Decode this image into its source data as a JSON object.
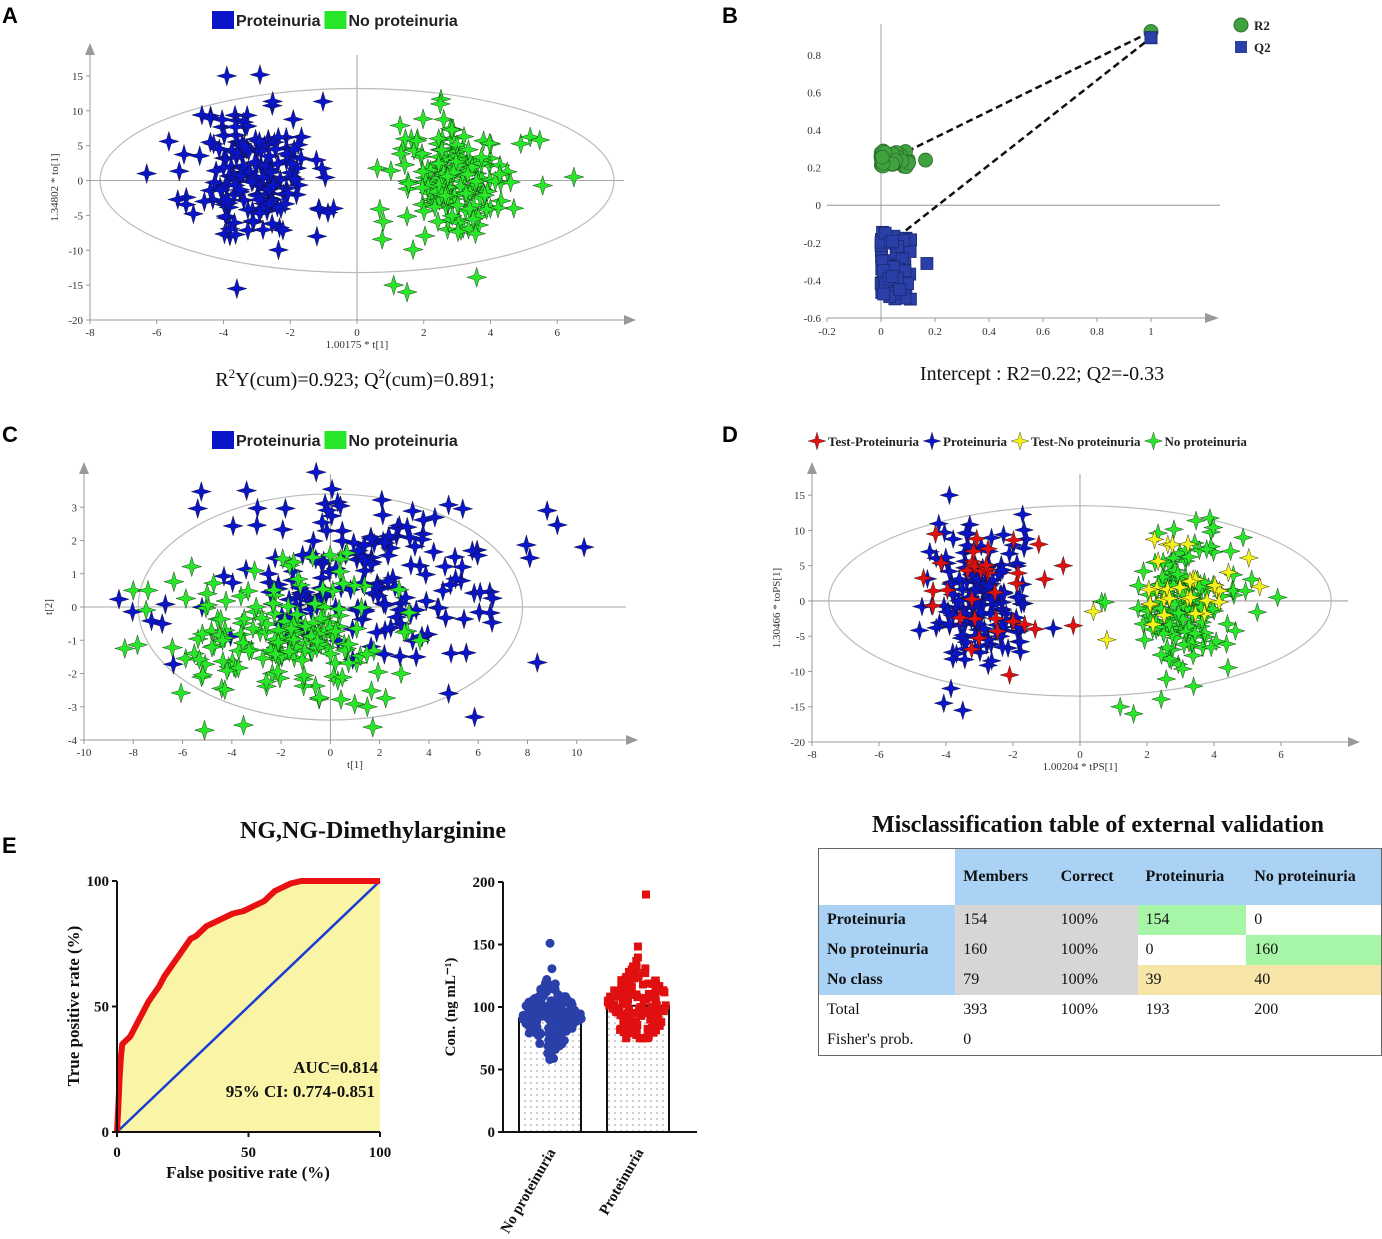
{
  "panels": {
    "a": "A",
    "b": "B",
    "c": "C",
    "d": "D",
    "e": "E"
  },
  "colors": {
    "blue": "#0a14c8",
    "green": "#28e628",
    "red": "#e01010",
    "yellow": "#f2f21a",
    "darkgreen": "#3fa23f",
    "navy": "#2b3fa8",
    "roc_fill": "#faf5a6",
    "roc_line": "#e81010",
    "diag": "#1a3cd6",
    "tbl_blue": "#a9d2f5",
    "tbl_gray": "#d6d6d6",
    "tbl_green": "#a7f5a7",
    "tbl_yellow": "#f7e6a8"
  },
  "chart_data": [
    {
      "id": "A",
      "type": "scatter",
      "legend": [
        "Proteinuria",
        "No proteinuria"
      ],
      "xlabel": "1.00175 * t[1]",
      "ylabel": "1.34802 * to[1]",
      "xlim": [
        -8,
        8
      ],
      "ylim": [
        -20,
        18
      ],
      "xticks": [
        -8,
        -6,
        -4,
        -2,
        0,
        2,
        4,
        6
      ],
      "yticks": [
        -20,
        -15,
        -10,
        -5,
        0,
        5,
        10,
        15
      ],
      "caption": "R²Y(cum)=0.923; Q²(cum)=0.891;",
      "caption_parts": [
        "R",
        "2",
        "Y(cum)=0.923; Q",
        "2",
        "(cum)=0.891;"
      ],
      "ellipse": {
        "cx": 0,
        "cy": 0,
        "rx": 7.7,
        "ry": 13.2
      },
      "groups": [
        {
          "name": "Proteinuria",
          "color": "blue",
          "cx": -3.1,
          "cy": 1,
          "sx": 0.9,
          "sy": 5.2
        },
        {
          "name": "No proteinuria",
          "color": "green",
          "cx": 3,
          "cy": 0,
          "sx": 0.9,
          "sy": 4.5
        }
      ],
      "outliers": {
        "Proteinuria": [
          [
            -6.3,
            1
          ],
          [
            -3.9,
            15
          ],
          [
            -0.7,
            -4
          ],
          [
            -3.6,
            -15.5
          ],
          [
            -1.2,
            -8
          ]
        ],
        "No proteinuria": [
          [
            6.5,
            0.5
          ],
          [
            1.1,
            -15
          ],
          [
            1.5,
            -16
          ]
        ]
      }
    },
    {
      "id": "B",
      "type": "scatter",
      "legend": [
        "R2",
        "Q2"
      ],
      "xlim": [
        -0.2,
        1.2
      ],
      "ylim": [
        -0.6,
        0.9
      ],
      "xticks": [
        -0.2,
        0,
        0.2,
        0.4,
        0.6,
        0.8,
        1
      ],
      "yticks": [
        -0.6,
        -0.4,
        -0.2,
        0,
        0.2,
        0.4,
        0.6,
        0.8
      ],
      "caption": "Intercept : R2=0.22; Q2=-0.33",
      "r2_point": [
        1,
        0.923
      ],
      "q2_point": [
        1,
        0.891
      ],
      "r2_cluster": {
        "x": [
          0,
          0.16
        ],
        "y": [
          0.2,
          0.29
        ]
      },
      "q2_cluster": {
        "x": [
          0,
          0.16
        ],
        "y": [
          -0.5,
          -0.14
        ]
      },
      "lines": [
        [
          [
            0.06,
            0.26
          ],
          [
            1,
            0.923
          ]
        ],
        [
          [
            0.06,
            -0.17
          ],
          [
            1,
            0.891
          ]
        ]
      ]
    },
    {
      "id": "C",
      "type": "scatter",
      "legend": [
        "Proteinuria",
        "No proteinuria"
      ],
      "xlabel": "t[1]",
      "ylabel": "t[2]",
      "xlim": [
        -10,
        12
      ],
      "ylim": [
        -4,
        4
      ],
      "xticks": [
        -10,
        -8,
        -6,
        -4,
        -2,
        0,
        2,
        4,
        6,
        8,
        10
      ],
      "yticks": [
        -4,
        -3,
        -2,
        -1,
        0,
        1,
        2,
        3
      ],
      "ellipse": {
        "cx": 0,
        "cy": 0,
        "rx": 7.8,
        "ry": 3.4
      },
      "groups": [
        {
          "name": "Proteinuria",
          "color": "blue",
          "cx": 1.3,
          "cy": 0.7,
          "sx": 3.2,
          "sy": 1.3
        },
        {
          "name": "No proteinuria",
          "color": "green",
          "cx": -1.8,
          "cy": -0.9,
          "sx": 2.2,
          "sy": 1.0
        }
      ],
      "outliers": {
        "Proteinuria": [
          [
            10.3,
            1.8
          ],
          [
            8.8,
            2.9
          ],
          [
            -3.4,
            3.5
          ],
          [
            4.8,
            -2.6
          ]
        ],
        "No proteinuria": [
          [
            -8,
            0.5
          ],
          [
            -7.4,
            0.5
          ],
          [
            1.5,
            -3
          ]
        ]
      }
    },
    {
      "id": "D",
      "type": "scatter",
      "legend": [
        "Test-Proteinuria",
        "Proteinuria",
        "Test-No proteinuria",
        "No proteinuria"
      ],
      "xlabel": "1.00204 * tPS[1]",
      "ylabel": "1.30466 * toPS[1]",
      "xlim": [
        -8,
        8
      ],
      "ylim": [
        -20,
        18
      ],
      "xticks": [
        -8,
        -6,
        -4,
        -2,
        0,
        2,
        4,
        6
      ],
      "yticks": [
        -20,
        -15,
        -10,
        -5,
        0,
        5,
        10,
        15
      ],
      "ellipse": {
        "cx": 0,
        "cy": 0,
        "rx": 7.5,
        "ry": 13.5
      },
      "groups": [
        {
          "name": "Proteinuria",
          "color": "blue",
          "cx": -3,
          "cy": 0,
          "sx": 0.8,
          "sy": 5
        },
        {
          "name": "No proteinuria",
          "color": "green",
          "cx": 3,
          "cy": 0,
          "sx": 0.85,
          "sy": 5
        },
        {
          "name": "Test-Proteinuria",
          "color": "red",
          "cx": -3,
          "cy": 1,
          "sx": 0.9,
          "sy": 4.5
        },
        {
          "name": "Test-No proteinuria",
          "color": "yellow",
          "cx": 3.2,
          "cy": 2,
          "sx": 0.9,
          "sy": 3.5
        }
      ],
      "outliers": {
        "Test-Proteinuria": [
          [
            -0.5,
            5
          ],
          [
            -0.2,
            -3.5
          ],
          [
            -2.1,
            -10.5
          ]
        ],
        "Test-No proteinuria": [
          [
            0.4,
            -1.5
          ],
          [
            0.8,
            -5.5
          ]
        ],
        "No proteinuria": [
          [
            5.9,
            0.5
          ],
          [
            1.2,
            -15
          ],
          [
            1.6,
            -16
          ]
        ],
        "Proteinuria": [
          [
            -3.9,
            15
          ],
          [
            -3.5,
            -15.5
          ]
        ]
      }
    },
    {
      "id": "E-roc",
      "type": "line",
      "title": "NG,NG-Dimethylarginine",
      "xlabel": "False positive rate (%)",
      "ylabel": "True positive rate (%)",
      "xlim": [
        0,
        100
      ],
      "ylim": [
        0,
        100
      ],
      "xticks": [
        0,
        50,
        100
      ],
      "yticks": [
        0,
        50,
        100
      ],
      "auc": "AUC=0.814",
      "ci": "95% CI: 0.774-0.851",
      "x": [
        0,
        0.5,
        1,
        1.5,
        2,
        3,
        4,
        5,
        6,
        7,
        8,
        9,
        10,
        12,
        14,
        16,
        18,
        20,
        22,
        24,
        26,
        28,
        30,
        32,
        34,
        36,
        38,
        40,
        42,
        44,
        46,
        48,
        50,
        52,
        54,
        56,
        58,
        60,
        62,
        64,
        66,
        68,
        70,
        72,
        74,
        76,
        80,
        85,
        90,
        95,
        100
      ],
      "y": [
        0,
        10,
        22,
        30,
        35,
        36,
        37,
        38,
        40,
        42,
        44,
        46,
        48,
        52,
        55,
        58,
        62,
        65,
        68,
        71,
        74,
        77,
        78,
        80,
        82,
        83,
        84,
        85,
        86,
        87,
        87.5,
        88,
        89,
        90,
        91,
        92,
        94,
        96,
        97,
        98,
        99,
        99.5,
        100,
        100,
        100,
        100,
        100,
        100,
        100,
        100,
        100
      ]
    },
    {
      "id": "E-bar",
      "type": "bar",
      "categories": [
        "No proteinuria",
        "Proteinuria"
      ],
      "values": [
        91,
        101
      ],
      "ylabel": "Con. (ng mL⁻¹)",
      "ylim": [
        0,
        200
      ],
      "yticks": [
        0,
        50,
        100,
        150,
        200
      ],
      "spread": [
        {
          "min": 58,
          "max": 151,
          "sd": 14,
          "marker": "circle",
          "color": "navy"
        },
        {
          "min": 75,
          "max": 190,
          "sd": 18,
          "marker": "square",
          "color": "red"
        }
      ]
    }
  ],
  "table": {
    "title": "Misclassification  table of external validation",
    "headers": [
      "",
      "Members",
      "Correct",
      "Proteinuria",
      "No proteinuria"
    ],
    "rows": [
      [
        "Proteinuria",
        "154",
        "100%",
        "154",
        "0"
      ],
      [
        "No proteinuria",
        "160",
        "100%",
        "0",
        "160"
      ],
      [
        "No class",
        "79",
        "100%",
        "39",
        "40"
      ],
      [
        "Total",
        "393",
        "100%",
        "193",
        "200"
      ],
      [
        "Fisher's prob.",
        "0",
        "",
        "",
        ""
      ]
    ]
  }
}
